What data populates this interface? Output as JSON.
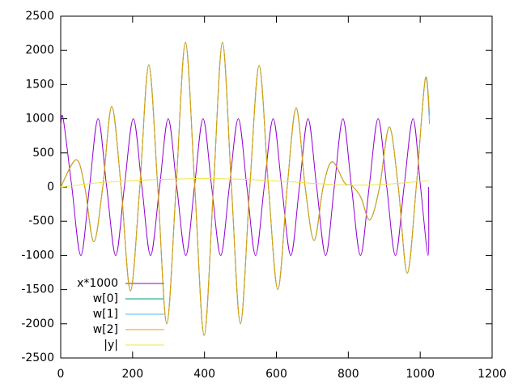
{
  "chart_data": {
    "type": "line",
    "xlim": [
      0,
      1200
    ],
    "xticks": [
      0,
      200,
      400,
      600,
      800,
      1000,
      1200
    ],
    "ylim": [
      -2500,
      2500
    ],
    "yticks": [
      -2500,
      -2000,
      -1500,
      -1000,
      -500,
      0,
      500,
      1000,
      1500,
      2000,
      2500
    ],
    "legend": "lower-left",
    "series": [
      {
        "name": "x*1000",
        "color": "#9400d3",
        "x": [
          0,
          7,
          31,
          56,
          80,
          104,
          128,
          153,
          177,
          202,
          226,
          250,
          275,
          299,
          323,
          348,
          372,
          396,
          420,
          445,
          469,
          494,
          518,
          542,
          566,
          591,
          615,
          640,
          664,
          688,
          712,
          737,
          761,
          785,
          809,
          834,
          858,
          883,
          907,
          931,
          955,
          980,
          1001,
          1022,
          1023
        ],
        "values": [
          900,
          1000,
          0,
          -1000,
          0,
          1000,
          0,
          -1000,
          0,
          1000,
          0,
          -1000,
          0,
          1000,
          0,
          -1000,
          0,
          1000,
          0,
          -1000,
          0,
          1000,
          0,
          -1000,
          0,
          1000,
          0,
          -1000,
          0,
          1000,
          0,
          -1000,
          0,
          1000,
          0,
          -1000,
          0,
          1000,
          0,
          -1000,
          0,
          1000,
          0,
          -1000,
          0
        ]
      },
      {
        "name": "w[0]",
        "color": "#009e73",
        "x": [
          0,
          43,
          67,
          92,
          117,
          142,
          168,
          194,
          220,
          245,
          270,
          295,
          321,
          347,
          373,
          399,
          425,
          450,
          475,
          500,
          526,
          552,
          578,
          604,
          630,
          655,
          680,
          705,
          730,
          755,
          790,
          810,
          835,
          860,
          887,
          914,
          939,
          964,
          989,
          1014,
          1026
        ],
        "values": [
          0,
          400,
          0,
          -800,
          0,
          1180,
          0,
          -1520,
          0,
          1790,
          0,
          -2000,
          0,
          2120,
          0,
          -2170,
          0,
          2120,
          0,
          -2000,
          0,
          1780,
          0,
          -1500,
          0,
          1160,
          0,
          -780,
          0,
          370,
          60,
          20,
          -150,
          -480,
          0,
          880,
          0,
          -1260,
          0,
          1580,
          1050
        ]
      },
      {
        "name": "w[1]",
        "color": "#56b4e9",
        "x": [
          0,
          43,
          67,
          92,
          117,
          142,
          168,
          194,
          220,
          245,
          270,
          295,
          321,
          347,
          373,
          399,
          425,
          450,
          475,
          500,
          526,
          552,
          578,
          604,
          630,
          655,
          680,
          705,
          730,
          755,
          790,
          810,
          835,
          860,
          887,
          914,
          939,
          964,
          989,
          1014,
          1026
        ],
        "values": [
          0,
          400,
          0,
          -800,
          0,
          1180,
          0,
          -1520,
          0,
          1790,
          0,
          -2000,
          0,
          2120,
          0,
          -2170,
          0,
          2120,
          0,
          -2000,
          0,
          1780,
          0,
          -1500,
          0,
          1160,
          0,
          -780,
          0,
          370,
          60,
          20,
          -150,
          -480,
          0,
          880,
          0,
          -1260,
          0,
          1580,
          920
        ]
      },
      {
        "name": "w[2]",
        "color": "#e69f00",
        "x": [
          0,
          43,
          67,
          92,
          117,
          142,
          168,
          194,
          220,
          245,
          270,
          295,
          321,
          347,
          373,
          399,
          425,
          450,
          475,
          500,
          526,
          552,
          578,
          604,
          630,
          655,
          680,
          705,
          730,
          755,
          790,
          810,
          835,
          860,
          887,
          914,
          939,
          964,
          989,
          1014,
          1026
        ],
        "values": [
          0,
          400,
          0,
          -800,
          0,
          1180,
          0,
          -1520,
          0,
          1790,
          0,
          -2000,
          0,
          2120,
          0,
          -2170,
          0,
          2120,
          0,
          -2000,
          0,
          1780,
          0,
          -1500,
          0,
          1160,
          0,
          -780,
          0,
          370,
          60,
          20,
          -150,
          -480,
          0,
          880,
          0,
          -1260,
          0,
          1580,
          1050
        ]
      },
      {
        "name": "|y|",
        "color": "#f0e442",
        "x": [
          0,
          100,
          200,
          300,
          400,
          500,
          600,
          700,
          800,
          900,
          1000,
          1024
        ],
        "values": [
          0,
          60,
          95,
          115,
          125,
          115,
          90,
          55,
          30,
          40,
          85,
          95
        ]
      }
    ]
  }
}
